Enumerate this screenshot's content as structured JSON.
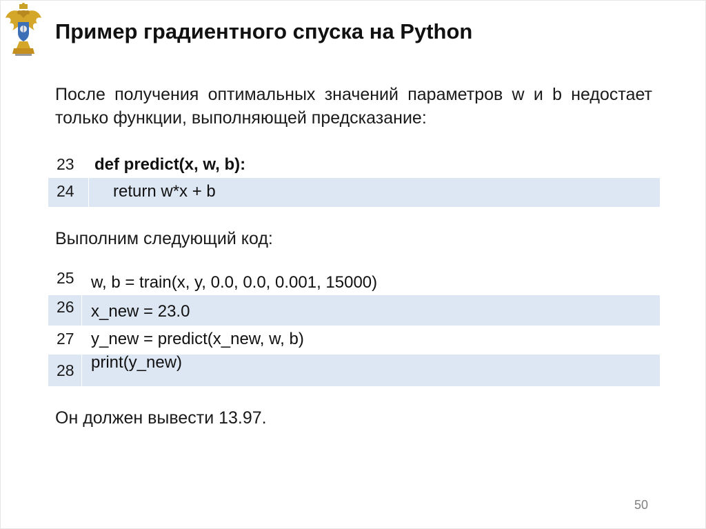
{
  "slide": {
    "title": "Пример градиентного спуска на Python",
    "intro": "После получения оптимальных значений параметров w и b недостает только функции, выполняющей предсказание:",
    "block1": [
      {
        "num": "23",
        "code": "def predict(x, w, b):"
      },
      {
        "num": "24",
        "code": "return w*x + b"
      }
    ],
    "middle_text": "Выполним следующий код:",
    "block2": [
      {
        "num": "25",
        "code": "w, b = train(x, y, 0.0, 0.0, 0.001, 15000)"
      },
      {
        "num": "26",
        "code": "x_new = 23.0"
      },
      {
        "num": "27",
        "code": "y_new = predict(x_new, w, b)"
      },
      {
        "num": "28",
        "code": "print(y_new)"
      }
    ],
    "result_text": "Он должен вывести 13.97.",
    "page_number": "50"
  },
  "colors": {
    "code_row_shade": "#dde6f3",
    "page_number": "#7f7f7f"
  },
  "icons": [
    "coat-of-arms-logo"
  ]
}
